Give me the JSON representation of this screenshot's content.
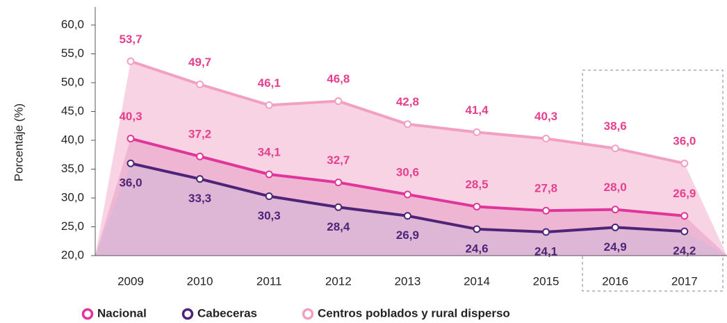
{
  "chart_data": {
    "type": "line",
    "y_label": "Porcentaje (%)",
    "categories": [
      "2009",
      "2010",
      "2011",
      "2012",
      "2013",
      "2014",
      "2015",
      "2016",
      "2017"
    ],
    "ylim": [
      20,
      60
    ],
    "yticks": [
      {
        "value": 20,
        "label": "20,0"
      },
      {
        "value": 25,
        "label": "25,0"
      },
      {
        "value": 30,
        "label": "30,0"
      },
      {
        "value": 35,
        "label": "35,0"
      },
      {
        "value": 40,
        "label": "40,0"
      },
      {
        "value": 45,
        "label": "45,0"
      },
      {
        "value": 50,
        "label": "50,0"
      },
      {
        "value": 55,
        "label": "55,0"
      },
      {
        "value": 60,
        "label": "60,0"
      }
    ],
    "series": [
      {
        "name": "Centros poblados y rural disperso",
        "color": "#f2a0c2",
        "label_color": "#e5408f",
        "area_color": "#f8d3e3",
        "label_pos": "above",
        "values": [
          53.7,
          49.7,
          46.1,
          46.8,
          42.8,
          41.4,
          40.3,
          38.6,
          36.0
        ],
        "value_labels": [
          "53,7",
          "49,7",
          "46,1",
          "46,8",
          "42,8",
          "41,4",
          "40,3",
          "38,6",
          "36,0"
        ]
      },
      {
        "name": "Nacional",
        "color": "#e0359a",
        "label_color": "#e5408f",
        "area_color": "#eeb6d2",
        "label_pos": "above",
        "values": [
          40.3,
          37.2,
          34.1,
          32.7,
          30.6,
          28.5,
          27.8,
          28.0,
          26.9
        ],
        "value_labels": [
          "40,3",
          "37,2",
          "34,1",
          "32,7",
          "30,6",
          "28,5",
          "27,8",
          "28,0",
          "26,9"
        ]
      },
      {
        "name": "Cabeceras",
        "color": "#4e2478",
        "label_color": "#4e2478",
        "area_color": "#ddb7d5",
        "label_pos": "below",
        "values": [
          36.0,
          33.3,
          30.3,
          28.4,
          26.9,
          24.6,
          24.1,
          24.9,
          24.2
        ],
        "value_labels": [
          "36,0",
          "33,3",
          "30,3",
          "28,4",
          "26,9",
          "24,6",
          "24,1",
          "24,9",
          "24,2"
        ]
      }
    ]
  }
}
